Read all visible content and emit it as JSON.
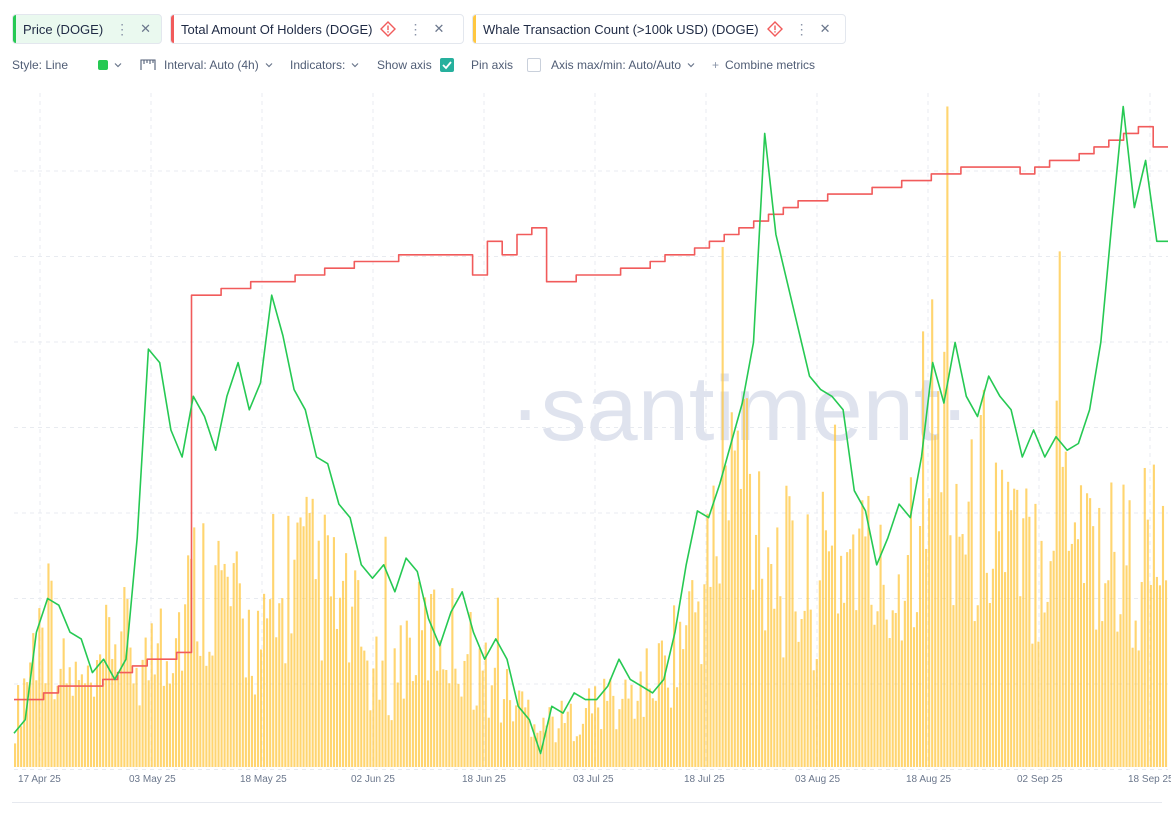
{
  "tabs": [
    {
      "label": "Price (DOGE)",
      "color": "#26c953",
      "active": true,
      "warning": false
    },
    {
      "label": "Total Amount Of Holders (DOGE)",
      "color": "#f15b5b",
      "active": false,
      "warning": true
    },
    {
      "label": "Whale Transaction Count (>100k USD) (DOGE)",
      "color": "#ffc740",
      "active": false,
      "warning": true
    }
  ],
  "toolbar": {
    "style": "Style: Line",
    "interval": "Interval: Auto (4h)",
    "indicators": "Indicators:",
    "show_axis": "Show axis",
    "show_axis_checked": true,
    "pin_axis": "Pin axis",
    "pin_axis_checked": false,
    "axis_maxmin": "Axis max/min: Auto/Auto",
    "combine": "Combine metrics",
    "color_swatch": "#26c953"
  },
  "watermark": "·santiment·",
  "chart_data": {
    "type": "line",
    "x_ticks": [
      "17 Apr 25",
      "03 May 25",
      "18 May 25",
      "02 Jun 25",
      "18 Jun 25",
      "03 Jul 25",
      "18 Jul 25",
      "03 Aug 25",
      "18 Aug 25",
      "02 Sep 25",
      "18 Sep 25"
    ],
    "x_range": [
      "2025-04-16",
      "2025-09-18"
    ],
    "grid": true,
    "series": [
      {
        "name": "Price (DOGE)",
        "type": "line",
        "color": "#26c953",
        "relative_values": [
          0.05,
          0.07,
          0.2,
          0.25,
          0.24,
          0.2,
          0.19,
          0.14,
          0.16,
          0.13,
          0.16,
          0.34,
          0.62,
          0.6,
          0.5,
          0.46,
          0.55,
          0.52,
          0.47,
          0.55,
          0.6,
          0.53,
          0.57,
          0.7,
          0.64,
          0.56,
          0.53,
          0.46,
          0.45,
          0.39,
          0.37,
          0.3,
          0.28,
          0.3,
          0.26,
          0.31,
          0.29,
          0.22,
          0.18,
          0.23,
          0.26,
          0.2,
          0.16,
          0.19,
          0.16,
          0.09,
          0.07,
          0.02,
          0.09,
          0.08,
          0.11,
          0.1,
          0.1,
          0.12,
          0.16,
          0.13,
          0.12,
          0.11,
          0.13,
          0.2,
          0.3,
          0.38,
          0.37,
          0.42,
          0.48,
          0.54,
          0.63,
          0.94,
          0.79,
          0.72,
          0.65,
          0.58,
          0.56,
          0.55,
          0.53,
          0.41,
          0.38,
          0.3,
          0.34,
          0.39,
          0.37,
          0.46,
          0.6,
          0.54,
          0.63,
          0.55,
          0.52,
          0.58,
          0.55,
          0.53,
          0.46,
          0.5,
          0.46,
          0.49,
          0.47,
          0.48,
          0.53,
          0.63,
          0.81,
          0.98,
          0.83,
          0.9,
          0.78,
          0.78
        ]
      },
      {
        "name": "Total Amount Of Holders (DOGE)",
        "type": "step",
        "color": "#f15b5b",
        "relative_values": [
          0.1,
          0.1,
          0.11,
          0.12,
          0.12,
          0.12,
          0.13,
          0.14,
          0.15,
          0.16,
          0.16,
          0.17,
          0.7,
          0.7,
          0.71,
          0.71,
          0.72,
          0.72,
          0.72,
          0.73,
          0.73,
          0.74,
          0.74,
          0.75,
          0.75,
          0.75,
          0.76,
          0.76,
          0.76,
          0.76,
          0.76,
          0.73,
          0.78,
          0.76,
          0.79,
          0.8,
          0.72,
          0.72,
          0.73,
          0.73,
          0.73,
          0.74,
          0.74,
          0.75,
          0.76,
          0.76,
          0.77,
          0.78,
          0.79,
          0.8,
          0.81,
          0.82,
          0.83,
          0.84,
          0.84,
          0.85,
          0.85,
          0.85,
          0.86,
          0.86,
          0.87,
          0.87,
          0.88,
          0.88,
          0.89,
          0.89,
          0.89,
          0.89,
          0.88,
          0.89,
          0.9,
          0.9,
          0.91,
          0.92,
          0.93,
          0.94,
          0.95,
          0.92,
          0.92
        ]
      },
      {
        "name": "Whale Transaction Count (>100k USD) (DOGE)",
        "type": "bar",
        "color": "#ffc740",
        "relative_values": [
          0.1,
          0.25,
          0.35,
          0.2,
          0.18,
          0.15,
          0.3,
          0.26,
          0.22,
          0.28,
          0.3,
          0.4,
          0.42,
          0.38,
          0.3,
          0.28,
          0.26,
          0.45,
          0.42,
          0.4,
          0.35,
          0.3,
          0.2,
          0.18,
          0.26,
          0.28,
          0.3,
          0.28,
          0.25,
          0.2,
          0.16,
          0.14,
          0.12,
          0.1,
          0.1,
          0.12,
          0.14,
          0.12,
          0.16,
          0.18,
          0.22,
          0.28,
          0.35,
          0.45,
          0.6,
          0.7,
          0.55,
          0.45,
          0.4,
          0.38,
          0.42,
          0.45,
          0.5,
          0.4,
          0.38,
          0.48,
          0.7,
          0.78,
          0.6,
          0.5,
          0.62,
          0.55,
          0.42,
          0.5,
          0.58,
          0.68,
          0.55,
          0.45,
          0.48,
          0.42,
          0.5,
          0.4
        ]
      }
    ]
  }
}
